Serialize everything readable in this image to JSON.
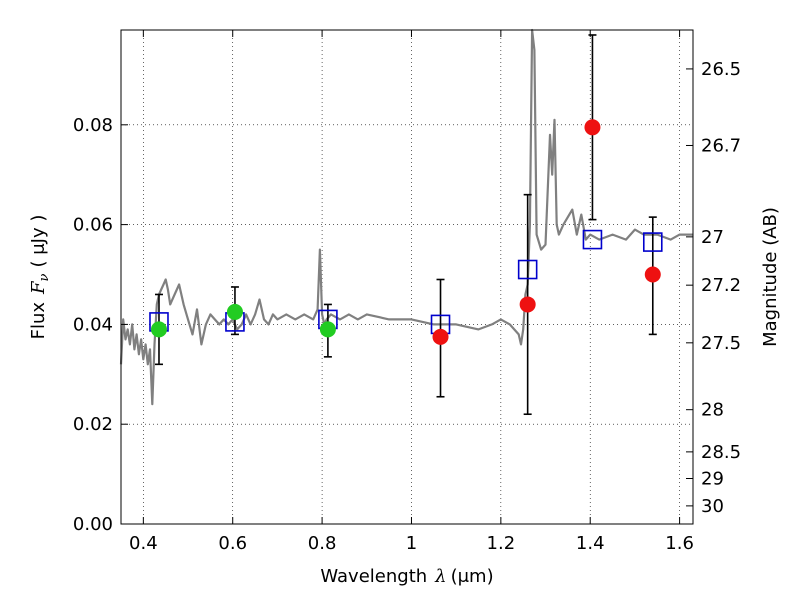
{
  "chart_data": {
    "type": "scatter",
    "title": "",
    "xlabel_text": "Wavelength",
    "xlabel_symbol": "λ",
    "xlabel_unit": "(μm)",
    "ylabel_text": "Flux",
    "ylabel_symbol": "F",
    "ylabel_subscript": "ν",
    "ylabel_unit": "( μJy )",
    "y2label": "Magnitude (AB)",
    "xlim": [
      0.35,
      1.63
    ],
    "ylim": [
      0.0,
      0.099
    ],
    "grid": true,
    "x_ticks": [
      {
        "value": 0.4,
        "label": "0.4"
      },
      {
        "value": 0.6,
        "label": "0.6"
      },
      {
        "value": 0.8,
        "label": "0.8"
      },
      {
        "value": 1.0,
        "label": "1"
      },
      {
        "value": 1.2,
        "label": "1.2"
      },
      {
        "value": 1.4,
        "label": "1.4"
      },
      {
        "value": 1.6,
        "label": "1.6"
      }
    ],
    "y_ticks": [
      {
        "value": 0.0,
        "label": "0.00"
      },
      {
        "value": 0.02,
        "label": "0.02"
      },
      {
        "value": 0.04,
        "label": "0.04"
      },
      {
        "value": 0.06,
        "label": "0.06"
      },
      {
        "value": 0.08,
        "label": "0.08"
      }
    ],
    "mag_ticks": [
      {
        "value": 26.5,
        "label": "26.5"
      },
      {
        "value": 26.7,
        "label": "26.7"
      },
      {
        "value": 27.0,
        "label": "27"
      },
      {
        "value": 27.2,
        "label": "27.2"
      },
      {
        "value": 27.5,
        "label": "27.5"
      },
      {
        "value": 28.0,
        "label": "28"
      },
      {
        "value": 28.5,
        "label": "28.5"
      },
      {
        "value": 29.0,
        "label": "29"
      },
      {
        "value": 30.0,
        "label": "30"
      }
    ],
    "colors": {
      "model_spectrum": "#808080",
      "green_points": "#22cc22",
      "red_points": "#ee1111",
      "model_boxes": "#0000cc",
      "error_bars": "#000000"
    },
    "model_spectrum": {
      "x": [
        0.35,
        0.355,
        0.36,
        0.365,
        0.37,
        0.375,
        0.38,
        0.385,
        0.39,
        0.395,
        0.4,
        0.405,
        0.41,
        0.415,
        0.42,
        0.425,
        0.43,
        0.435,
        0.44,
        0.445,
        0.45,
        0.455,
        0.46,
        0.47,
        0.48,
        0.49,
        0.5,
        0.51,
        0.52,
        0.53,
        0.54,
        0.55,
        0.56,
        0.57,
        0.58,
        0.59,
        0.6,
        0.61,
        0.62,
        0.63,
        0.64,
        0.65,
        0.66,
        0.67,
        0.68,
        0.69,
        0.7,
        0.72,
        0.74,
        0.76,
        0.78,
        0.79,
        0.795,
        0.8,
        0.805,
        0.81,
        0.82,
        0.84,
        0.86,
        0.88,
        0.9,
        0.95,
        1.0,
        1.05,
        1.1,
        1.15,
        1.18,
        1.2,
        1.22,
        1.24,
        1.245,
        1.25,
        1.255,
        1.26,
        1.265,
        1.27,
        1.275,
        1.28,
        1.29,
        1.3,
        1.31,
        1.315,
        1.32,
        1.325,
        1.33,
        1.34,
        1.36,
        1.37,
        1.38,
        1.39,
        1.4,
        1.42,
        1.45,
        1.48,
        1.5,
        1.52,
        1.55,
        1.58,
        1.6,
        1.63
      ],
      "y": [
        0.032,
        0.041,
        0.037,
        0.039,
        0.036,
        0.04,
        0.035,
        0.038,
        0.034,
        0.037,
        0.033,
        0.036,
        0.032,
        0.035,
        0.024,
        0.036,
        0.044,
        0.046,
        0.047,
        0.048,
        0.049,
        0.047,
        0.044,
        0.046,
        0.048,
        0.044,
        0.041,
        0.038,
        0.043,
        0.036,
        0.04,
        0.042,
        0.041,
        0.04,
        0.041,
        0.04,
        0.041,
        0.039,
        0.04,
        0.042,
        0.04,
        0.042,
        0.045,
        0.041,
        0.04,
        0.042,
        0.041,
        0.042,
        0.041,
        0.042,
        0.041,
        0.043,
        0.055,
        0.042,
        0.04,
        0.041,
        0.042,
        0.041,
        0.042,
        0.041,
        0.042,
        0.041,
        0.041,
        0.04,
        0.04,
        0.039,
        0.04,
        0.041,
        0.04,
        0.038,
        0.036,
        0.039,
        0.046,
        0.048,
        0.06,
        0.099,
        0.095,
        0.058,
        0.055,
        0.056,
        0.078,
        0.07,
        0.081,
        0.06,
        0.058,
        0.06,
        0.063,
        0.058,
        0.062,
        0.057,
        0.058,
        0.057,
        0.058,
        0.057,
        0.059,
        0.058,
        0.058,
        0.057,
        0.058,
        0.058
      ]
    },
    "series": [
      {
        "points": [
          {
            "x": 0.435,
            "y": 0.039,
            "err_low": 0.032,
            "err_high": 0.046
          },
          {
            "x": 0.605,
            "y": 0.0425,
            "err_low": 0.038,
            "err_high": 0.0475
          },
          {
            "x": 0.813,
            "y": 0.039,
            "err_low": 0.0335,
            "err_high": 0.044
          }
        ]
      },
      {
        "points": [
          {
            "x": 1.065,
            "y": 0.0375,
            "err_low": 0.0255,
            "err_high": 0.049
          },
          {
            "x": 1.26,
            "y": 0.044,
            "err_low": 0.022,
            "err_high": 0.066
          },
          {
            "x": 1.405,
            "y": 0.0795,
            "err_low": 0.061,
            "err_high": 0.098
          },
          {
            "x": 1.54,
            "y": 0.05,
            "err_low": 0.038,
            "err_high": 0.0615
          }
        ]
      },
      {
        "points": [
          {
            "x": 0.435,
            "y": 0.0405
          },
          {
            "x": 0.605,
            "y": 0.0405
          },
          {
            "x": 0.813,
            "y": 0.041
          },
          {
            "x": 1.065,
            "y": 0.04
          },
          {
            "x": 1.26,
            "y": 0.051
          },
          {
            "x": 1.405,
            "y": 0.057
          },
          {
            "x": 1.54,
            "y": 0.0565
          }
        ]
      }
    ]
  }
}
